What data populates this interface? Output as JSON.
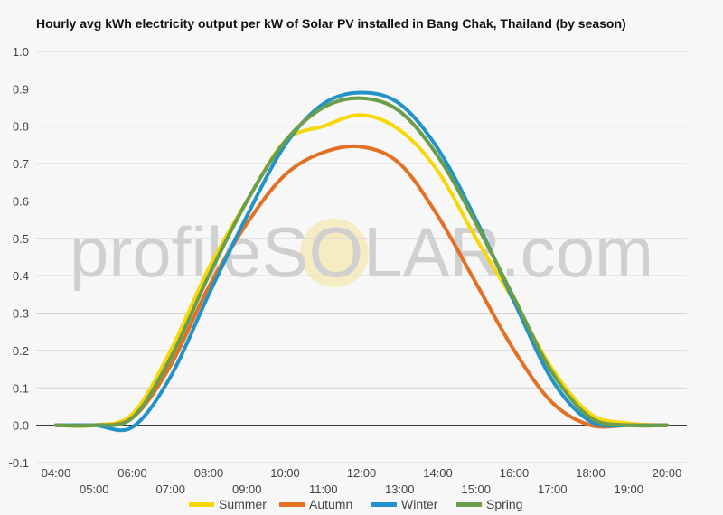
{
  "chart_data": {
    "type": "line",
    "title": "Hourly avg kWh electricity output per kW of Solar PV installed in Bang Chak, Thailand (by season)",
    "xlabel": "",
    "ylabel": "",
    "x": [
      "04:00",
      "05:00",
      "06:00",
      "07:00",
      "08:00",
      "09:00",
      "10:00",
      "11:00",
      "12:00",
      "13:00",
      "14:00",
      "15:00",
      "16:00",
      "17:00",
      "18:00",
      "19:00",
      "20:00"
    ],
    "ylim": [
      -0.1,
      1.0
    ],
    "yticks": [
      "-0.1",
      "0.0",
      "0.1",
      "0.2",
      "0.3",
      "0.4",
      "0.5",
      "0.6",
      "0.7",
      "0.8",
      "0.9",
      "1.0"
    ],
    "grid": true,
    "legend": "bottom",
    "series": [
      {
        "name": "Summer",
        "color": "#f7d708",
        "values": [
          0.0,
          0.0,
          0.03,
          0.2,
          0.42,
          0.6,
          0.76,
          0.8,
          0.83,
          0.79,
          0.68,
          0.5,
          0.33,
          0.15,
          0.03,
          0.005,
          0.0
        ]
      },
      {
        "name": "Autumn",
        "color": "#e27126",
        "values": [
          0.0,
          0.0,
          0.02,
          0.16,
          0.37,
          0.54,
          0.67,
          0.73,
          0.745,
          0.7,
          0.56,
          0.38,
          0.2,
          0.06,
          0.0,
          0.0,
          0.0
        ]
      },
      {
        "name": "Winter",
        "color": "#2293c8",
        "values": [
          0.0,
          0.0,
          -0.005,
          0.13,
          0.35,
          0.56,
          0.75,
          0.86,
          0.89,
          0.86,
          0.74,
          0.55,
          0.33,
          0.12,
          0.01,
          0.0,
          0.0
        ]
      },
      {
        "name": "Spring",
        "color": "#6b9e4b",
        "values": [
          0.0,
          0.0,
          0.02,
          0.18,
          0.4,
          0.6,
          0.76,
          0.85,
          0.875,
          0.84,
          0.72,
          0.54,
          0.34,
          0.14,
          0.02,
          0.0,
          0.0
        ]
      }
    ],
    "watermark": "profileSOLAR.com"
  }
}
